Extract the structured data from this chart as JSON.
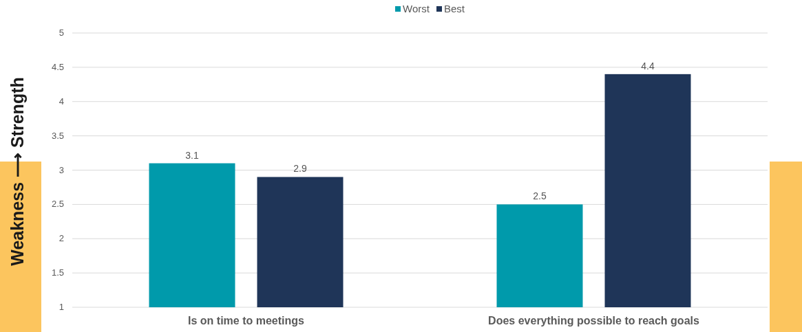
{
  "chart_data": {
    "type": "bar",
    "ylabel": "Weakness ⟶ Strength",
    "categories": [
      "Is on time to meetings",
      "Does everything possible to reach goals"
    ],
    "series": [
      {
        "name": "Worst",
        "color": "#009aab",
        "values": [
          3.1,
          2.5
        ]
      },
      {
        "name": "Best",
        "color": "#1f3558",
        "values": [
          2.9,
          4.4
        ]
      }
    ],
    "ylim": [
      1,
      5
    ],
    "yticks": [
      1,
      1.5,
      2,
      2.5,
      3,
      3.5,
      4,
      4.5,
      5
    ],
    "grid": "y",
    "legend": "top",
    "data_labels": true
  }
}
